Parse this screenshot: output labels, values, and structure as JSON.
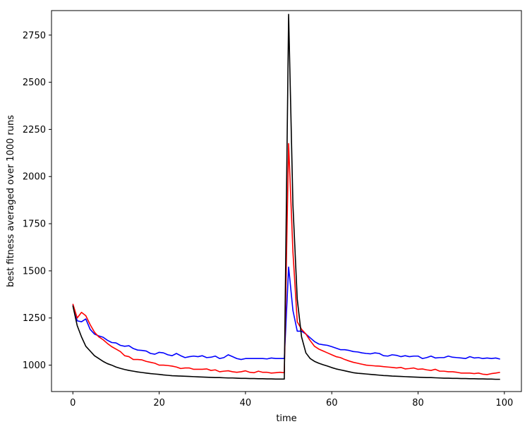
{
  "chart_data": {
    "type": "line",
    "title": "",
    "xlabel": "time",
    "ylabel": "best fitness averaged over 1000 runs",
    "xlim": [
      -4.95,
      103.95
    ],
    "ylim": [
      860,
      2880
    ],
    "xticks": [
      0,
      20,
      40,
      60,
      80,
      100
    ],
    "yticks": [
      1000,
      1250,
      1500,
      1750,
      2000,
      2250,
      2500,
      2750
    ],
    "grid": false,
    "legend": "none",
    "series": [
      {
        "color": "#0000ff",
        "x": [
          0,
          1,
          2,
          3,
          4,
          5,
          6,
          7,
          8,
          9,
          10,
          11,
          12,
          13,
          14,
          15,
          16,
          17,
          18,
          19,
          20,
          21,
          22,
          23,
          24,
          25,
          26,
          27,
          28,
          29,
          30,
          31,
          32,
          33,
          34,
          35,
          36,
          37,
          38,
          39,
          40,
          41,
          42,
          43,
          44,
          45,
          46,
          47,
          48,
          49,
          50,
          51,
          52,
          53,
          54,
          55,
          56,
          57,
          58,
          59,
          60,
          61,
          62,
          63,
          64,
          65,
          66,
          67,
          68,
          69,
          70,
          71,
          72,
          73,
          74,
          75,
          76,
          77,
          78,
          79,
          80,
          81,
          82,
          83,
          84,
          85,
          86,
          87,
          88,
          89,
          90,
          91,
          92,
          93,
          94,
          95,
          96,
          97,
          98,
          99
        ],
        "y": [
          1320,
          1235,
          1230,
          1245,
          1190,
          1165,
          1155,
          1148,
          1132,
          1120,
          1118,
          1105,
          1100,
          1103,
          1088,
          1080,
          1078,
          1075,
          1062,
          1058,
          1068,
          1065,
          1055,
          1050,
          1062,
          1050,
          1040,
          1045,
          1048,
          1045,
          1050,
          1040,
          1042,
          1048,
          1035,
          1040,
          1055,
          1045,
          1035,
          1030,
          1035,
          1035,
          1035,
          1035,
          1035,
          1033,
          1038,
          1035,
          1035,
          1035,
          1520,
          1290,
          1180,
          1180,
          1165,
          1145,
          1125,
          1112,
          1108,
          1105,
          1098,
          1090,
          1082,
          1082,
          1078,
          1072,
          1070,
          1065,
          1062,
          1060,
          1065,
          1062,
          1050,
          1048,
          1055,
          1052,
          1045,
          1050,
          1045,
          1048,
          1048,
          1035,
          1040,
          1048,
          1038,
          1040,
          1040,
          1048,
          1042,
          1040,
          1038,
          1035,
          1045,
          1038,
          1040,
          1035,
          1038,
          1035,
          1038,
          1032
        ]
      },
      {
        "color": "#ff0000",
        "x": [
          0,
          1,
          2,
          3,
          4,
          5,
          6,
          7,
          8,
          9,
          10,
          11,
          12,
          13,
          14,
          15,
          16,
          17,
          18,
          19,
          20,
          21,
          22,
          23,
          24,
          25,
          26,
          27,
          28,
          29,
          30,
          31,
          32,
          33,
          34,
          35,
          36,
          37,
          38,
          39,
          40,
          41,
          42,
          43,
          44,
          45,
          46,
          47,
          48,
          49,
          50,
          51,
          52,
          53,
          54,
          55,
          56,
          57,
          58,
          59,
          60,
          61,
          62,
          63,
          64,
          65,
          66,
          67,
          68,
          69,
          70,
          71,
          72,
          73,
          74,
          75,
          76,
          77,
          78,
          79,
          80,
          81,
          82,
          83,
          84,
          85,
          86,
          87,
          88,
          89,
          90,
          91,
          92,
          93,
          94,
          95,
          96,
          97,
          98,
          99
        ],
        "y": [
          1325,
          1250,
          1280,
          1262,
          1215,
          1175,
          1150,
          1135,
          1115,
          1098,
          1085,
          1072,
          1050,
          1045,
          1030,
          1030,
          1028,
          1020,
          1015,
          1010,
          1000,
          1000,
          998,
          995,
          990,
          982,
          985,
          985,
          978,
          978,
          978,
          980,
          972,
          975,
          965,
          968,
          970,
          965,
          962,
          965,
          970,
          962,
          960,
          968,
          962,
          962,
          958,
          960,
          962,
          960,
          2175,
          1600,
          1230,
          1190,
          1165,
          1130,
          1100,
          1085,
          1075,
          1065,
          1055,
          1045,
          1040,
          1030,
          1022,
          1015,
          1010,
          1005,
          1000,
          998,
          996,
          995,
          992,
          990,
          988,
          985,
          988,
          980,
          982,
          985,
          978,
          980,
          975,
          972,
          978,
          968,
          968,
          965,
          965,
          962,
          958,
          958,
          958,
          955,
          958,
          952,
          950,
          955,
          958,
          962
        ]
      },
      {
        "color": "#000000",
        "x": [
          0,
          1,
          2,
          3,
          4,
          5,
          6,
          7,
          8,
          9,
          10,
          11,
          12,
          13,
          14,
          15,
          16,
          17,
          18,
          19,
          20,
          21,
          22,
          23,
          24,
          25,
          26,
          27,
          28,
          29,
          30,
          31,
          32,
          33,
          34,
          35,
          36,
          37,
          38,
          39,
          40,
          41,
          42,
          43,
          44,
          45,
          46,
          47,
          48,
          49,
          50,
          51,
          52,
          53,
          54,
          55,
          56,
          57,
          58,
          59,
          60,
          61,
          62,
          63,
          64,
          65,
          66,
          67,
          68,
          69,
          70,
          71,
          72,
          73,
          74,
          75,
          76,
          77,
          78,
          79,
          80,
          81,
          82,
          83,
          84,
          85,
          86,
          87,
          88,
          89,
          90,
          91,
          92,
          93,
          94,
          95,
          96,
          97,
          98,
          99
        ],
        "y": [
          1315,
          1210,
          1150,
          1100,
          1075,
          1050,
          1035,
          1020,
          1008,
          1000,
          990,
          983,
          977,
          972,
          968,
          964,
          961,
          958,
          955,
          953,
          951,
          948,
          946,
          944,
          943,
          942,
          941,
          940,
          939,
          938,
          937,
          936,
          935,
          934,
          934,
          933,
          932,
          932,
          931,
          930,
          930,
          929,
          929,
          928,
          928,
          927,
          927,
          926,
          926,
          926,
          2860,
          1850,
          1350,
          1150,
          1065,
          1035,
          1020,
          1010,
          1002,
          995,
          987,
          980,
          975,
          970,
          965,
          960,
          957,
          955,
          953,
          951,
          949,
          947,
          945,
          944,
          942,
          941,
          940,
          939,
          938,
          937,
          936,
          935,
          934,
          934,
          933,
          932,
          931,
          931,
          930,
          930,
          929,
          929,
          928,
          928,
          927,
          927,
          926,
          926,
          925,
          925
        ]
      }
    ]
  }
}
